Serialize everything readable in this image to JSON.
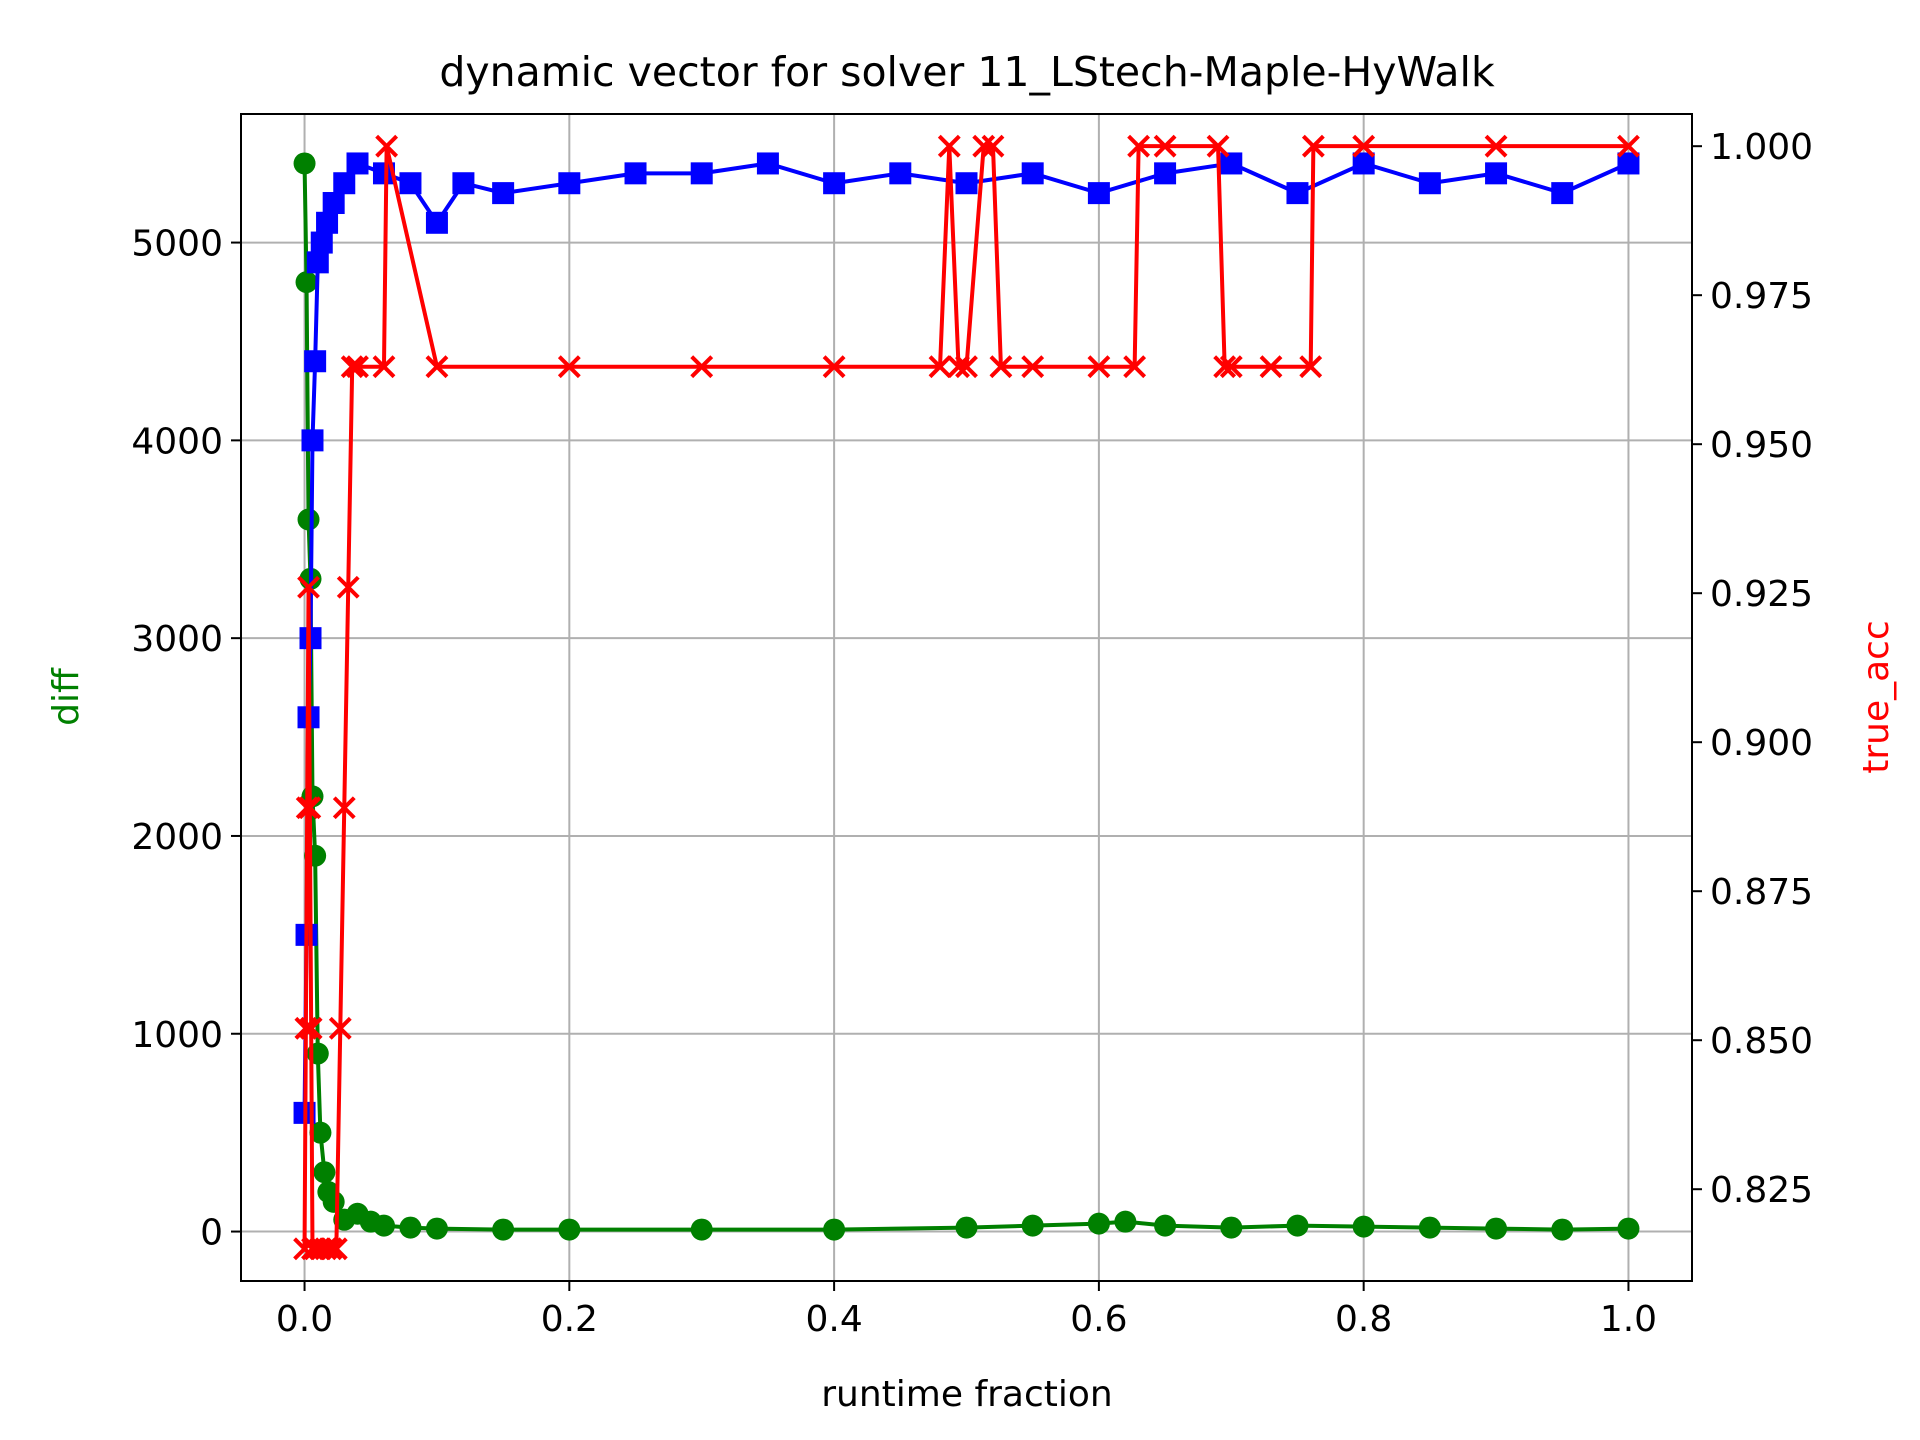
{
  "chart_data": {
    "type": "scatter",
    "title": "dynamic vector for solver 11_LStech-Maple-HyWalk",
    "xlabel": "runtime fraction",
    "ylabel_left": "diff",
    "ylabel_right": "true_acc",
    "xlim": [
      -0.048,
      1.048
    ],
    "ylim_left": [
      -250,
      5650
    ],
    "ylim_right": [
      0.8096,
      1.0054
    ],
    "grid": true,
    "x_ticks": [
      "0.0",
      "0.2",
      "0.4",
      "0.6",
      "0.8",
      "1.0"
    ],
    "y_left_ticks": [
      "0",
      "1000",
      "2000",
      "3000",
      "4000",
      "5000"
    ],
    "y_right_ticks": [
      "0.825",
      "0.850",
      "0.875",
      "0.900",
      "0.925",
      "0.950",
      "0.975",
      "1.000"
    ],
    "x_tick_values": [
      0,
      0.2,
      0.4,
      0.6,
      0.8,
      1.0
    ],
    "y_left_tick_values": [
      0,
      1000,
      2000,
      3000,
      4000,
      5000
    ],
    "y_right_tick_values": [
      0.825,
      0.85,
      0.875,
      0.9,
      0.925,
      0.95,
      0.975,
      1.0
    ],
    "colors": {
      "diff": "#008000",
      "blue_series": "#0000ff",
      "true_acc": "#ff0000",
      "left_label": "#008000",
      "right_label": "#ff0000"
    },
    "series": [
      {
        "axis": "left",
        "marker": "circle",
        "color": "#008000",
        "x": [
          0.0,
          0.0015,
          0.003,
          0.0045,
          0.006,
          0.008,
          0.01,
          0.012,
          0.015,
          0.018,
          0.022,
          0.03,
          0.04,
          0.05,
          0.06,
          0.08,
          0.1,
          0.15,
          0.2,
          0.3,
          0.4,
          0.5,
          0.55,
          0.6,
          0.62,
          0.65,
          0.7,
          0.75,
          0.8,
          0.85,
          0.9,
          0.95,
          1.0
        ],
        "y": [
          5400,
          4800,
          3600,
          3300,
          2200,
          1900,
          900,
          500,
          300,
          200,
          150,
          60,
          90,
          50,
          30,
          20,
          15,
          10,
          10,
          10,
          10,
          20,
          30,
          40,
          50,
          30,
          20,
          30,
          25,
          20,
          15,
          10,
          15
        ]
      },
      {
        "axis": "left",
        "marker": "square",
        "color": "#0000ff",
        "x": [
          0.0,
          0.0015,
          0.003,
          0.0045,
          0.006,
          0.008,
          0.01,
          0.013,
          0.017,
          0.022,
          0.03,
          0.04,
          0.06,
          0.08,
          0.1,
          0.12,
          0.15,
          0.2,
          0.25,
          0.3,
          0.35,
          0.4,
          0.45,
          0.5,
          0.55,
          0.6,
          0.65,
          0.7,
          0.75,
          0.8,
          0.85,
          0.9,
          0.95,
          1.0
        ],
        "y": [
          600,
          1500,
          2600,
          3000,
          4000,
          4400,
          4900,
          5000,
          5100,
          5200,
          5300,
          5400,
          5350,
          5300,
          5100,
          5300,
          5250,
          5300,
          5350,
          5350,
          5400,
          5300,
          5350,
          5300,
          5350,
          5250,
          5350,
          5400,
          5250,
          5400,
          5300,
          5350,
          5250,
          5400
        ]
      },
      {
        "axis": "right",
        "marker": "x",
        "color": "#ff0000",
        "x": [
          0.0,
          0.001,
          0.002,
          0.003,
          0.004,
          0.005,
          0.006,
          0.008,
          0.012,
          0.016,
          0.02,
          0.024,
          0.027,
          0.03,
          0.033,
          0.036,
          0.04,
          0.06,
          0.062,
          0.1,
          0.2,
          0.3,
          0.4,
          0.48,
          0.487,
          0.494,
          0.5,
          0.513,
          0.52,
          0.526,
          0.55,
          0.6,
          0.627,
          0.63,
          0.65,
          0.69,
          0.695,
          0.7,
          0.73,
          0.76,
          0.762,
          0.8,
          0.9,
          1.0
        ],
        "y": [
          0.815,
          0.852,
          0.889,
          0.926,
          0.889,
          0.852,
          0.815,
          0.815,
          0.815,
          0.815,
          0.815,
          0.815,
          0.852,
          0.889,
          0.926,
          0.963,
          0.963,
          0.963,
          1.0,
          0.963,
          0.963,
          0.963,
          0.963,
          0.963,
          1.0,
          0.963,
          0.963,
          1.0,
          1.0,
          0.963,
          0.963,
          0.963,
          0.963,
          1.0,
          1.0,
          1.0,
          0.963,
          0.963,
          0.963,
          0.963,
          1.0,
          1.0,
          1.0,
          1.0
        ]
      }
    ]
  }
}
